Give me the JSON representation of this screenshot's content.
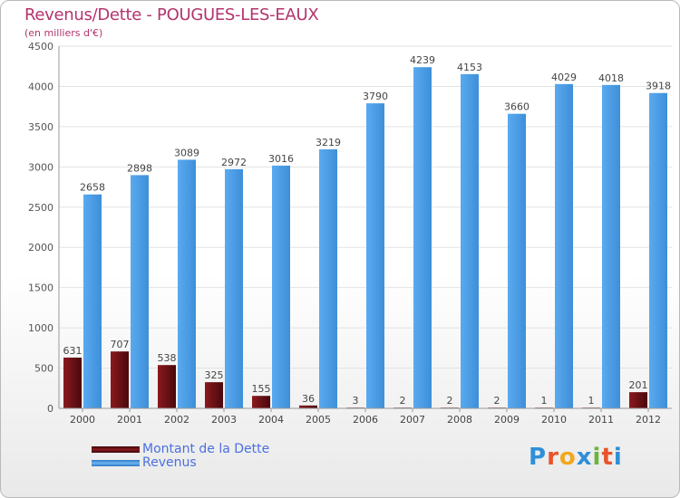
{
  "title": "Revenus/Dette - POUGUES-LES-EAUX",
  "subtitle": "(en milliers d'€)",
  "chart_data": {
    "type": "bar",
    "categories": [
      "2000",
      "2001",
      "2002",
      "2003",
      "2004",
      "2005",
      "2006",
      "2007",
      "2008",
      "2009",
      "2010",
      "2011",
      "2012"
    ],
    "series": [
      {
        "name": "Montant de la Dette",
        "color": "#6b0d12",
        "values": [
          631,
          707,
          538,
          325,
          155,
          36,
          3,
          2,
          2,
          2,
          1,
          1,
          201
        ]
      },
      {
        "name": "Revenus",
        "color": "#4d9be0",
        "values": [
          2658,
          2898,
          3089,
          2972,
          3016,
          3219,
          3790,
          4239,
          4153,
          3660,
          4029,
          4018,
          3918
        ]
      }
    ],
    "yticks": [
      0,
      500,
      1000,
      1500,
      2000,
      2500,
      3000,
      3500,
      4000,
      4500
    ],
    "ylim": [
      0,
      4500
    ],
    "grid": true,
    "legend_position": "bottom-left"
  },
  "legend": [
    {
      "label": "Montant de la Dette",
      "color": "#6b0d12"
    },
    {
      "label": "Revenus",
      "color": "#4d9be0"
    }
  ],
  "logo": {
    "letters": [
      "P",
      "r",
      "o",
      "x",
      "i",
      "t",
      "i"
    ],
    "colors": [
      "#2f8fd8",
      "#e8542a",
      "#f2a81d",
      "#2f8fd8",
      "#6cb33f",
      "#e8542a",
      "#2f8fd8"
    ]
  }
}
